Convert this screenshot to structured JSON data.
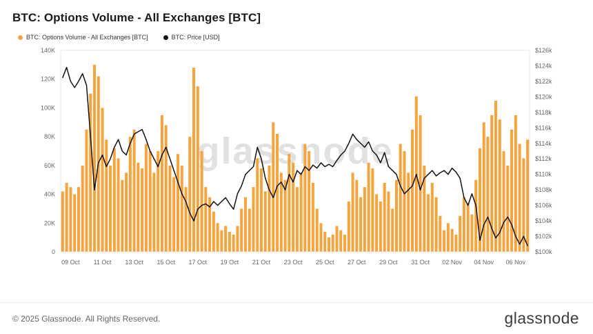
{
  "header": {
    "title": "BTC: Options Volume - All Exchanges [BTC]"
  },
  "legend": [
    {
      "label": "BTC: Options Volume - All Exchanges [BTC]",
      "color": "#f5a53f"
    },
    {
      "label": "BTC: Price [USD]",
      "color": "#111111"
    }
  ],
  "watermark": "glassnode",
  "footer": {
    "copyright": "© 2025 Glassnode. All Rights Reserved.",
    "brand": "glassnode"
  },
  "chart_data": {
    "type": "bar",
    "title": "BTC: Options Volume - All Exchanges [BTC]",
    "grid": false,
    "legend_position": "top-left",
    "x_start": "09 Oct",
    "points_per_day": 4,
    "points_per_tick": 8,
    "tick_offset": 2,
    "x_ticks": [
      "09 Oct",
      "11 Oct",
      "13 Oct",
      "15 Oct",
      "17 Oct",
      "19 Oct",
      "21 Oct",
      "23 Oct",
      "25 Oct",
      "27 Oct",
      "29 Oct",
      "31 Oct",
      "02 Nov",
      "04 Nov",
      "06 Nov"
    ],
    "left_axis": {
      "ticks": [
        "0",
        "20K",
        "40K",
        "60K",
        "80K",
        "100K",
        "120K",
        "140K"
      ],
      "min": 0,
      "max": 140,
      "unit": "BTC (thousands)"
    },
    "right_axis": {
      "ticks": [
        "$100k",
        "$102k",
        "$104k",
        "$106k",
        "$108k",
        "$110k",
        "$112k",
        "$114k",
        "$116k",
        "$118k",
        "$120k",
        "$122k",
        "$124k",
        "$126k"
      ],
      "min": 100,
      "max": 126,
      "unit": "USD (thousands)"
    },
    "series": [
      {
        "name": "BTC: Options Volume - All Exchanges [BTC]",
        "kind": "bar",
        "axis": "left",
        "color": "#f5a53f",
        "values": [
          42,
          48,
          45,
          40,
          45,
          60,
          85,
          110,
          130,
          122,
          100,
          78,
          60,
          72,
          65,
          50,
          55,
          80,
          85,
          62,
          58,
          75,
          70,
          55,
          70,
          95,
          88,
          60,
          52,
          68,
          60,
          45,
          80,
          128,
          115,
          70,
          45,
          38,
          28,
          20,
          15,
          18,
          14,
          12,
          18,
          30,
          38,
          30,
          45,
          65,
          58,
          42,
          60,
          90,
          82,
          55,
          50,
          68,
          62,
          45,
          55,
          75,
          70,
          48,
          30,
          20,
          14,
          10,
          12,
          18,
          15,
          12,
          35,
          55,
          50,
          38,
          45,
          62,
          58,
          40,
          35,
          48,
          42,
          30,
          50,
          75,
          70,
          55,
          85,
          108,
          95,
          60,
          40,
          48,
          38,
          25,
          15,
          20,
          16,
          12,
          25,
          38,
          34,
          26,
          50,
          72,
          90,
          80,
          95,
          105,
          92,
          70,
          60,
          85,
          95,
          75,
          65,
          78
        ]
      },
      {
        "name": "BTC: Price [USD]",
        "kind": "line",
        "axis": "right",
        "color": "#111111",
        "values": [
          122.5,
          123.8,
          122.0,
          121.2,
          122.0,
          123.0,
          121.5,
          115.0,
          108.0,
          111.5,
          112.5,
          111.0,
          112.0,
          113.5,
          114.5,
          113.0,
          112.5,
          114.0,
          115.2,
          115.5,
          115.8,
          114.5,
          113.0,
          112.0,
          111.0,
          112.5,
          113.5,
          112.0,
          110.5,
          109.0,
          107.5,
          106.5,
          105.0,
          104.0,
          105.5,
          106.0,
          106.2,
          105.8,
          106.5,
          106.0,
          106.5,
          107.0,
          106.2,
          105.5,
          107.5,
          108.5,
          110.0,
          110.5,
          111.0,
          113.5,
          112.0,
          109.5,
          108.0,
          107.0,
          108.5,
          109.0,
          108.0,
          110.0,
          109.0,
          110.5,
          110.0,
          111.0,
          110.5,
          111.2,
          110.8,
          111.5,
          111.0,
          111.3,
          111.0,
          111.8,
          112.5,
          113.0,
          114.0,
          115.2,
          114.5,
          114.0,
          113.5,
          114.2,
          113.0,
          112.5,
          111.5,
          112.8,
          111.0,
          110.5,
          110.0,
          108.5,
          107.5,
          108.0,
          108.5,
          110.0,
          108.0,
          109.5,
          110.0,
          110.5,
          109.8,
          110.2,
          110.5,
          110.0,
          110.8,
          110.3,
          109.5,
          107.0,
          106.0,
          107.5,
          106.0,
          101.5,
          103.5,
          104.5,
          103.0,
          101.8,
          102.5,
          103.8,
          104.5,
          103.5,
          102.0,
          101.0,
          102.0,
          100.8
        ]
      }
    ]
  }
}
